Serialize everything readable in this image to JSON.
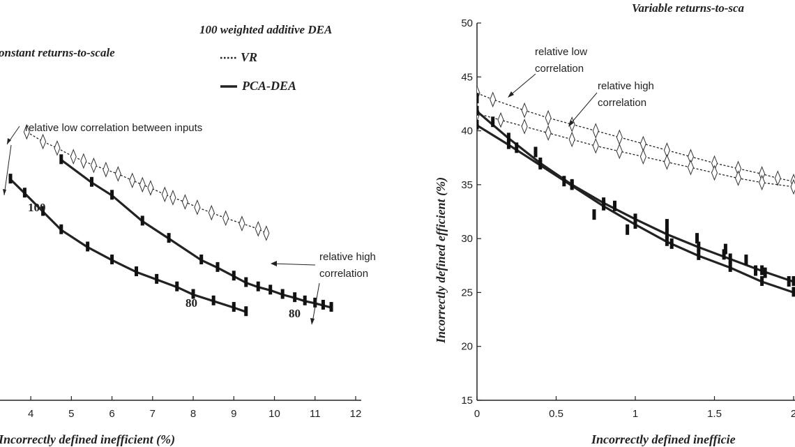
{
  "chart_data": [
    {
      "type": "line",
      "title": "Constant returns-to-scale",
      "xlabel": "Incorrectly defined inefficient (%)",
      "ylabel": "",
      "xlim": [
        3.5,
        12
      ],
      "ylim": [
        15,
        50
      ],
      "xticks": [
        "4",
        "5",
        "6",
        "7",
        "8",
        "9",
        "10",
        "11",
        "12"
      ],
      "legend": {
        "title": "100 weighted additive DEA",
        "entries": [
          "VR",
          "PCA-DEA"
        ]
      },
      "series": [
        {
          "name": "VR",
          "style": "dotted",
          "marker": "diamond",
          "x": [
            3.9,
            4.3,
            4.65,
            5.05,
            5.3,
            5.55,
            5.85,
            6.15,
            6.5,
            6.75,
            6.95,
            7.3,
            7.5,
            7.8,
            8.1,
            8.45,
            8.8,
            9.2,
            9.6,
            9.8
          ],
          "y": [
            39.9,
            39.0,
            38.4,
            37.6,
            37.2,
            36.8,
            36.4,
            36.0,
            35.4,
            35.0,
            34.7,
            34.1,
            33.8,
            33.4,
            32.9,
            32.4,
            31.9,
            31.4,
            30.9,
            30.5
          ]
        },
        {
          "name": "PCA-DEA (100)",
          "style": "solid",
          "marker": "bar",
          "x": [
            4.75,
            5.5,
            6.0,
            6.75,
            7.4,
            8.2,
            8.6,
            9.0,
            9.3,
            9.6,
            9.9,
            10.2,
            10.5,
            10.75,
            11.0,
            11.2,
            11.4
          ],
          "y": [
            37.3,
            35.2,
            34.0,
            31.6,
            30.0,
            28.0,
            27.3,
            26.5,
            25.9,
            25.5,
            25.2,
            24.8,
            24.5,
            24.2,
            24.0,
            23.8,
            23.6
          ]
        },
        {
          "name": "PCA-DEA (80)",
          "style": "solid",
          "marker": "bar",
          "x": [
            3.5,
            3.85,
            4.3,
            4.75,
            5.4,
            6.0,
            6.6,
            7.1,
            7.6,
            8.0,
            8.5,
            9.0,
            9.3
          ],
          "y": [
            35.5,
            34.2,
            32.5,
            30.8,
            29.2,
            28.0,
            26.9,
            26.2,
            25.5,
            24.8,
            24.2,
            23.6,
            23.2
          ]
        }
      ],
      "annotations": [
        {
          "text": "relative low correlation between inputs"
        },
        {
          "text": "relative high correlation"
        },
        {
          "text": "100"
        },
        {
          "text": "80"
        },
        {
          "text": "80"
        }
      ]
    },
    {
      "type": "line",
      "title": "Variable returns-to-scale",
      "xlabel": "Incorrectly defined inefficient (%)",
      "ylabel": "Incorrectly defined efficient (%)",
      "xlim": [
        0,
        2
      ],
      "ylim": [
        15,
        50
      ],
      "xticks": [
        "0",
        "0.5",
        "1",
        "1.5",
        "2"
      ],
      "yticks": [
        "15",
        "20",
        "25",
        "30",
        "35",
        "40",
        "45",
        "50"
      ],
      "series": [
        {
          "name": "VR (relative low correlation)",
          "style": "dotted",
          "marker": "diamond",
          "x": [
            0.0,
            0.1,
            0.3,
            0.45,
            0.6,
            0.75,
            0.9,
            1.05,
            1.2,
            1.35,
            1.5,
            1.65,
            1.8,
            1.9,
            2.0
          ],
          "y": [
            43.5,
            42.9,
            41.9,
            41.2,
            40.6,
            40.0,
            39.4,
            38.8,
            38.2,
            37.6,
            37.0,
            36.5,
            36.0,
            35.6,
            35.3
          ]
        },
        {
          "name": "VR (relative high correlation)",
          "style": "dotted",
          "marker": "diamond",
          "x": [
            0.0,
            0.15,
            0.3,
            0.45,
            0.6,
            0.75,
            0.9,
            1.05,
            1.2,
            1.35,
            1.5,
            1.65,
            1.8,
            2.0
          ],
          "y": [
            41.6,
            41.0,
            40.4,
            39.8,
            39.2,
            38.6,
            38.1,
            37.6,
            37.1,
            36.6,
            36.1,
            35.6,
            35.2,
            34.8
          ]
        },
        {
          "name": "PCA-DEA (relative low correlation)",
          "style": "solid",
          "marker": "bar",
          "x": [
            0.0,
            0.2,
            0.4,
            0.6,
            0.8,
            1.0,
            1.2,
            1.4,
            1.6,
            1.8,
            2.0
          ],
          "y": [
            41.8,
            39.3,
            37.0,
            35.0,
            33.3,
            31.8,
            30.4,
            29.2,
            28.1,
            27.0,
            26.0
          ]
        },
        {
          "name": "PCA-DEA (relative high correlation)",
          "style": "solid",
          "marker": "bar",
          "x": [
            0.0,
            0.2,
            0.4,
            0.6,
            0.8,
            1.0,
            1.2,
            1.4,
            1.6,
            1.8,
            2.0
          ],
          "y": [
            40.5,
            38.7,
            36.8,
            34.9,
            33.0,
            31.3,
            29.7,
            28.4,
            27.3,
            26.0,
            25.0
          ]
        }
      ],
      "points": [
        {
          "x": 0.0,
          "y": 43.0
        },
        {
          "x": 0.1,
          "y": 40.8
        },
        {
          "x": 0.25,
          "y": 38.4
        },
        {
          "x": 0.37,
          "y": 38.0
        },
        {
          "x": 0.55,
          "y": 35.3
        },
        {
          "x": 0.74,
          "y": 32.2
        },
        {
          "x": 0.87,
          "y": 33.0
        },
        {
          "x": 0.95,
          "y": 30.8
        },
        {
          "x": 1.2,
          "y": 31.3
        },
        {
          "x": 1.23,
          "y": 29.5
        },
        {
          "x": 1.39,
          "y": 30.0
        },
        {
          "x": 1.56,
          "y": 28.5
        },
        {
          "x": 1.57,
          "y": 29.0
        },
        {
          "x": 1.7,
          "y": 28.0
        },
        {
          "x": 1.76,
          "y": 27.0
        },
        {
          "x": 1.82,
          "y": 26.8
        },
        {
          "x": 1.97,
          "y": 26.0
        }
      ],
      "annotations": [
        {
          "text": "relative low correlation"
        },
        {
          "text": "relative high correlation"
        }
      ]
    }
  ],
  "labels": {
    "left_title": "onstant returns-to-scale",
    "right_title": "Variable returns-to-sca",
    "left_xlabel": "Incorrectly defined inefficient (%)",
    "right_xlabel": "Incorrectly defined inefficie",
    "right_ylabel": "Incorrectly defined efficient (%)",
    "legend_title": "100 weighted additive DEA",
    "legend_vr": "VR",
    "legend_pca": "PCA-DEA",
    "left_ann_low": "relative low correlation between inputs",
    "left_ann_high_1": "relative high",
    "left_ann_high_2": "correlation",
    "left_num_100": "100",
    "left_num_80a": "80",
    "left_num_80b": "80",
    "right_ann_low_1": "relative low",
    "right_ann_low_2": "correlation",
    "right_ann_high_1": "relative high",
    "right_ann_high_2": "correlation"
  }
}
